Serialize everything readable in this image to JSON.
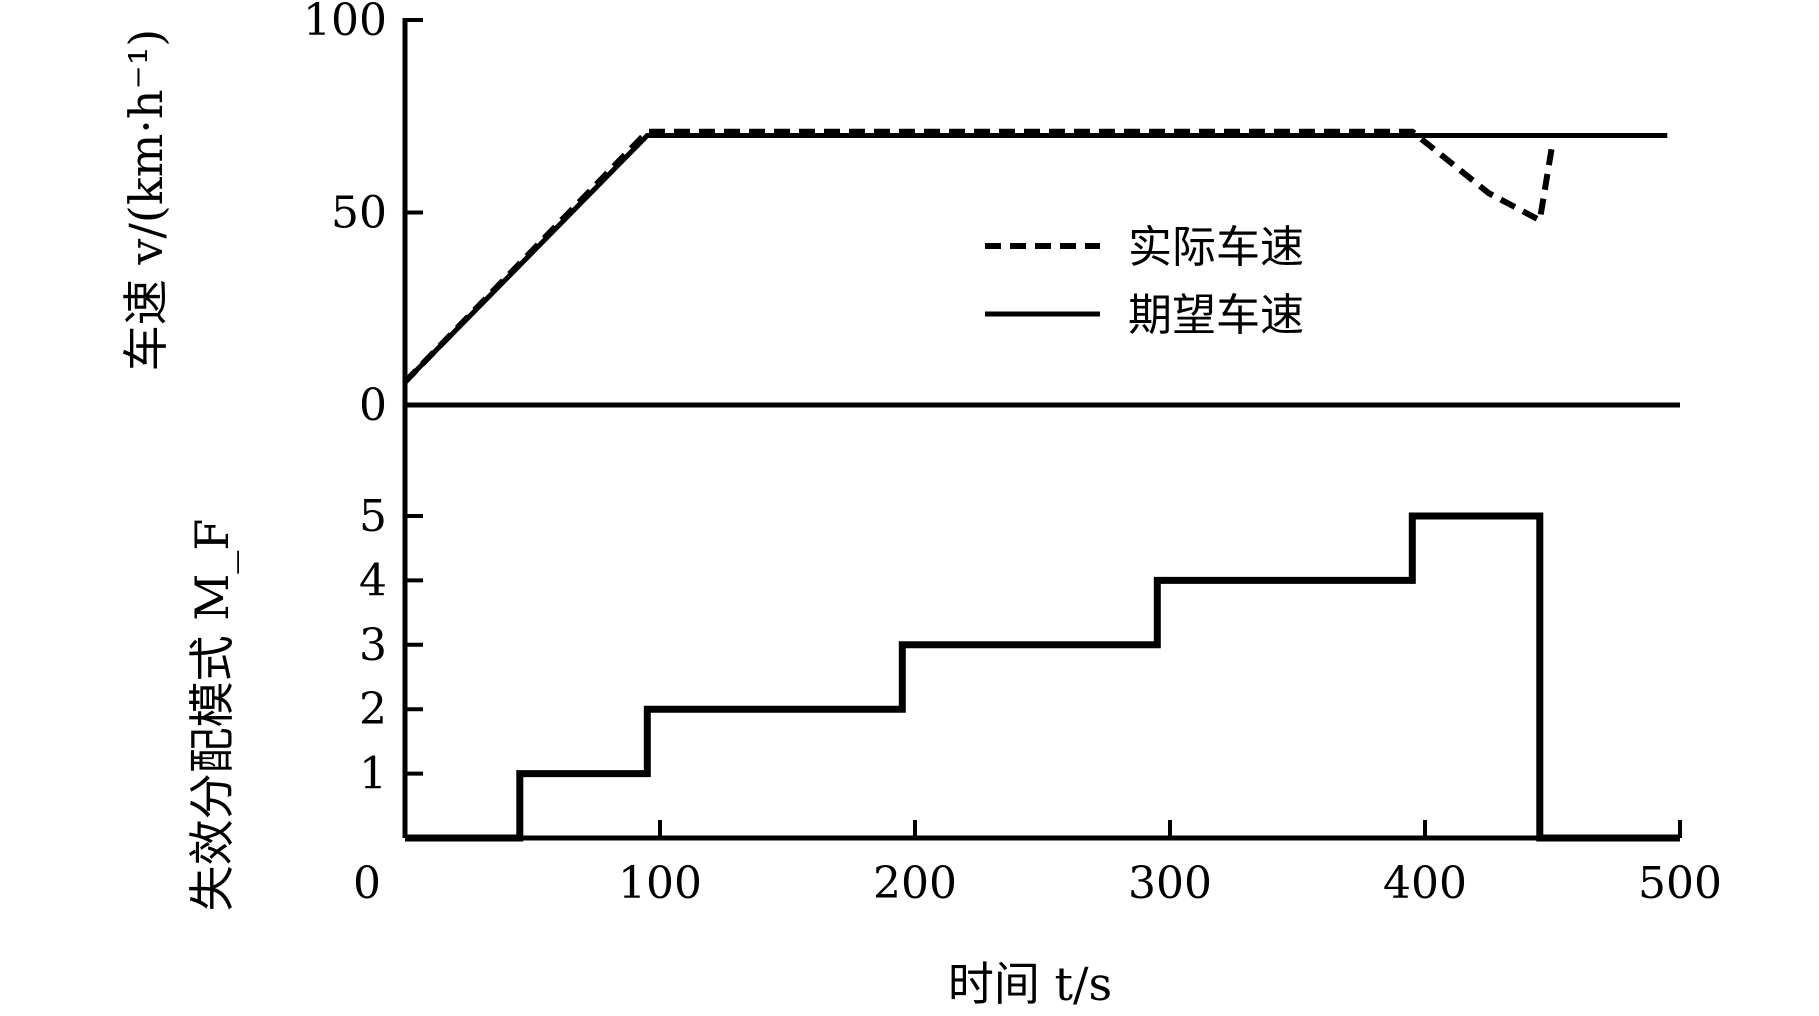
{
  "chart_data": [
    {
      "type": "line",
      "ylabel": "车速 v/(km·h⁻¹)",
      "ylim": [
        0,
        100
      ],
      "yticks": [
        "0",
        "50",
        "100"
      ],
      "xlim": [
        0,
        500
      ],
      "grid": false,
      "legend_position": "center-right",
      "series": [
        {
          "name": "实际车速",
          "style": "dashed",
          "x": [
            0,
            95,
            395,
            425,
            445,
            450
          ],
          "y": [
            6,
            71,
            71,
            55,
            48,
            68
          ]
        },
        {
          "name": "期望车速",
          "style": "solid",
          "x": [
            0,
            95,
            495
          ],
          "y": [
            6,
            70,
            70
          ]
        }
      ]
    },
    {
      "type": "line",
      "ylabel": "失效分配模式 M_F",
      "ylim": [
        0,
        5.5
      ],
      "yticks": [
        "1",
        "2",
        "3",
        "4",
        "5"
      ],
      "xlabel": "时间 t/s",
      "xlim": [
        0,
        500
      ],
      "xticks": [
        "0",
        "100",
        "200",
        "300",
        "400",
        "500"
      ],
      "grid": false,
      "series": [
        {
          "style": "step",
          "x": [
            0,
            45,
            45,
            95,
            95,
            195,
            195,
            295,
            295,
            395,
            395,
            445,
            445,
            500
          ],
          "y": [
            0,
            0,
            1,
            1,
            2,
            2,
            3,
            3,
            4,
            4,
            5,
            5,
            0,
            0
          ]
        }
      ]
    }
  ]
}
